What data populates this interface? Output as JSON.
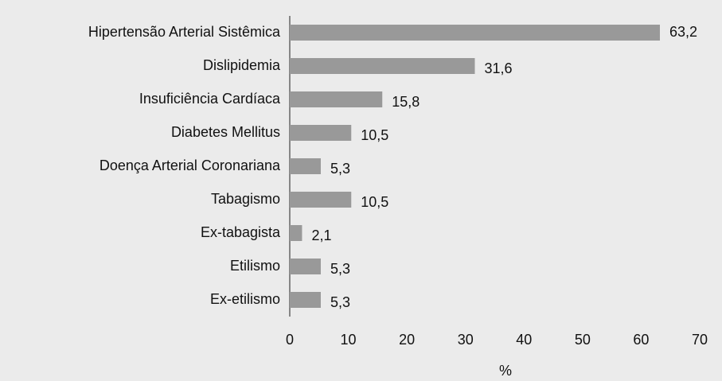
{
  "chart_data": {
    "type": "hbar",
    "categories": [
      "Hipertensão Arterial Sistêmica",
      "Dislipidemia",
      "Insuficiência Cardíaca",
      "Diabetes Mellitus",
      "Doença Arterial Coronariana",
      "Tabagismo",
      "Ex-tabagista",
      "Etilismo",
      "Ex-etilismo"
    ],
    "values": [
      63.2,
      31.6,
      15.8,
      10.5,
      5.3,
      10.5,
      2.1,
      5.3,
      5.3
    ],
    "value_labels": [
      "63,2",
      "31,6",
      "15,8",
      "10,5",
      "5,3",
      "10,5",
      "2,1",
      "5,3",
      "5,3"
    ],
    "color": "#999999",
    "xlabel": "%",
    "xlim": [
      0,
      70
    ],
    "xticks": [
      0,
      10,
      20,
      30,
      40,
      50,
      60,
      70
    ]
  }
}
